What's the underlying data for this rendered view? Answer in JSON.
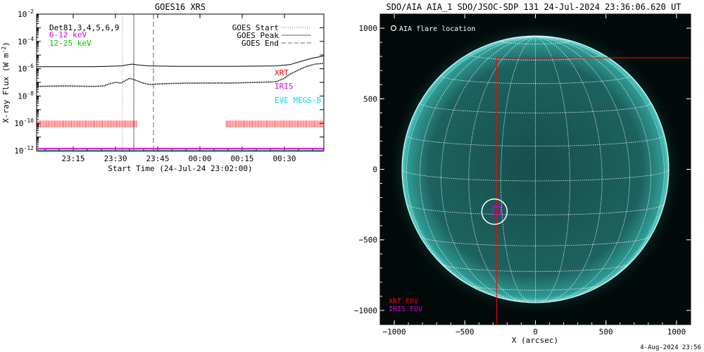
{
  "left_panel": {
    "title": "GOES16 XRS",
    "ylabel_main": "X-ray Flux (W m",
    "ylabel_sup": "-2",
    "ylabel_close": ")",
    "xlabel": "Start Time (24-Jul-24 23:02:00)",
    "overlay_text": "Det81,3,4,5,6,9",
    "legend_energy": [
      {
        "label": "6-12 keV",
        "color": "#e000e0"
      },
      {
        "label": "12-25 keV",
        "color": "#00c000"
      }
    ],
    "legend_lines": [
      {
        "label": "GOES Start",
        "style": "dotted"
      },
      {
        "label": "GOES Peak",
        "style": "solid"
      },
      {
        "label": "GOES End",
        "style": "dashed"
      }
    ],
    "instrument_labels": [
      {
        "label": "XRT",
        "color": "#ff0000"
      },
      {
        "label": "IRIS",
        "color": "#e000e0"
      },
      {
        "label": "EVE MEGS-B",
        "color": "#00e0e0"
      }
    ]
  },
  "right_panel": {
    "title": "SDO/AIA AIA_1 SDO/JSOC-SDP 131 24-Jul-2024 23:36:06.620 UT",
    "legend_flare": "AIA flare location",
    "xlabel": "X (arcsec)",
    "fov_labels": [
      {
        "label": "XRT FOV",
        "color": "#ff0000"
      },
      {
        "label": "IRIS FOV",
        "color": "#e000e0"
      }
    ],
    "footer": "4-Aug-2024 23:56"
  },
  "colors": {
    "disk": "#1a5a58",
    "disk_edge": "#3ad0c8",
    "xrt": "#ff0000",
    "iris": "#e000e0",
    "eve": "#00e0e0"
  },
  "chart_data": [
    {
      "type": "line",
      "title": "GOES16 XRS",
      "xlabel": "Start Time (24-Jul-24 23:02:00)",
      "ylabel": "X-ray Flux (W m^-2)",
      "yscale": "log",
      "ylim": [
        1e-12,
        0.01
      ],
      "y_ticks": [
        "10^-12",
        "10^-10",
        "10^-8",
        "10^-6",
        "10^-4",
        "10^-2"
      ],
      "x_ticks": [
        "23:15",
        "23:30",
        "23:45",
        "00:00",
        "00:15",
        "00:30"
      ],
      "xlim_minutes": [
        0,
        102
      ],
      "goes_start_min": 30.5,
      "goes_peak_min": 34.5,
      "goes_end_min": 41.5,
      "series": [
        {
          "name": "12-25 keV",
          "style": "solid",
          "color": "#000000",
          "x": [
            0,
            20,
            30,
            32,
            34,
            36,
            40,
            50,
            70,
            85,
            90,
            94,
            98,
            102
          ],
          "y": [
            1.4e-06,
            1.4e-06,
            1.6e-06,
            1.9e-06,
            2.2e-06,
            1.9e-06,
            1.6e-06,
            1.5e-06,
            1.5e-06,
            1.6e-06,
            2e-06,
            3.5e-06,
            6e-06,
            8.5e-06
          ]
        },
        {
          "name": "6-12 keV",
          "style": "dotted",
          "color": "#000000",
          "x": [
            0,
            10,
            20,
            24,
            26,
            28,
            30,
            33,
            35,
            37,
            40,
            45,
            55,
            70,
            85,
            88,
            90,
            93,
            96,
            99,
            102
          ],
          "y": [
            5e-08,
            5.5e-08,
            5e-08,
            5.5e-08,
            8e-08,
            1e-07,
            9e-08,
            2e-07,
            1.5e-07,
            1e-07,
            7e-08,
            8e-08,
            9e-08,
            9e-08,
            1.1e-07,
            2e-07,
            4e-07,
            8e-07,
            1.5e-06,
            2.2e-06,
            2.5e-06
          ]
        },
        {
          "name": "IRIS",
          "color": "#e000e0",
          "x": [
            0,
            102
          ],
          "y": [
            1.4e-12,
            1.4e-12
          ]
        },
        {
          "name": "EVE MEGS-B",
          "color": "#00e0e0",
          "x": [
            0,
            102
          ],
          "y": [
            9e-13,
            9e-13
          ]
        }
      ],
      "xrt_coverage_min": [
        [
          0,
          36
        ],
        [
          67,
          102
        ]
      ]
    },
    {
      "type": "scatter",
      "title": "SDO/AIA AIA_1 SDO/JSOC-SDP 131 24-Jul-2024 23:36:06.620 UT",
      "xlabel": "X (arcsec)",
      "xlim": [
        -1100,
        1100
      ],
      "ylim": [
        -1100,
        1100
      ],
      "x_ticks": [
        -1000,
        -500,
        0,
        500,
        1000
      ],
      "y_ticks": [
        -1000,
        -500,
        0,
        500,
        1000
      ],
      "solar_radius_arcsec": 945,
      "flare_location": {
        "x": -290,
        "y": -300
      },
      "xrt_fov": {
        "x0": -275,
        "y0": -1100,
        "x1": 1100,
        "y1": 790
      },
      "iris_fov": {
        "x0": -300,
        "y0": -320,
        "x1": -245,
        "y1": -265
      }
    }
  ]
}
